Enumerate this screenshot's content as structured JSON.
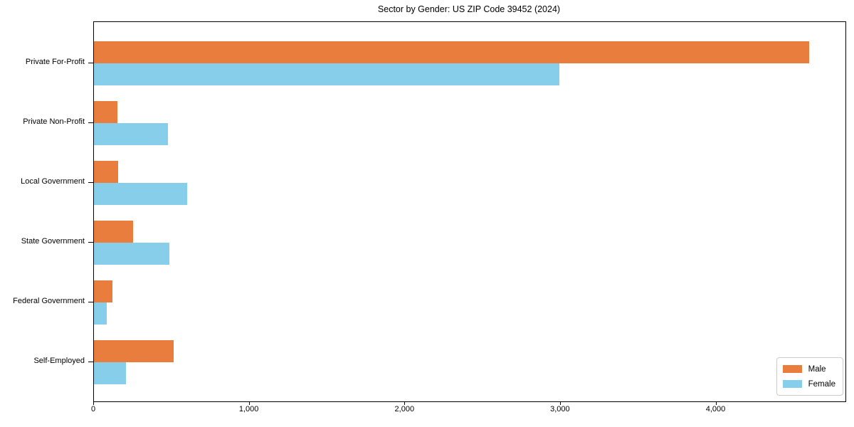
{
  "chart_data": {
    "type": "bar",
    "orientation": "horizontal",
    "title": "Sector by Gender: US ZIP Code 39452 (2024)",
    "categories": [
      "Private For-Profit",
      "Private Non-Profit",
      "Local Government",
      "State Government",
      "Federal Government",
      "Self-Employed"
    ],
    "series": [
      {
        "name": "Male",
        "color": "#e87d3e",
        "values": [
          4595,
          150,
          155,
          250,
          118,
          510
        ]
      },
      {
        "name": "Female",
        "color": "#87ceeb",
        "values": [
          2990,
          476,
          598,
          484,
          84,
          206
        ]
      }
    ],
    "xlabel": "",
    "ylabel": "",
    "xlim": [
      0,
      4830
    ],
    "xticks": [
      {
        "value": 0,
        "label": "0"
      },
      {
        "value": 1000,
        "label": "1,000"
      },
      {
        "value": 2000,
        "label": "2,000"
      },
      {
        "value": 3000,
        "label": "3,000"
      },
      {
        "value": 4000,
        "label": "4,000"
      }
    ],
    "grid": false,
    "legend_position": "lower right"
  }
}
